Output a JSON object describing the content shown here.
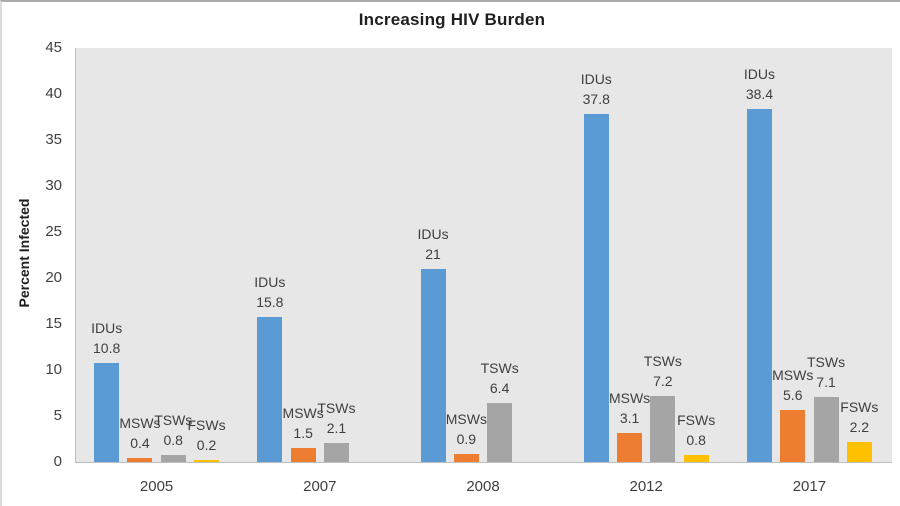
{
  "chart_data": {
    "type": "bar",
    "title": "Increasing HIV Burden",
    "xlabel": "",
    "ylabel": "Percent Infected",
    "categories": [
      "2005",
      "2007",
      "2008",
      "2012",
      "2017"
    ],
    "series": [
      {
        "name": "IDUs",
        "color": "#5B9BD5",
        "values": [
          10.8,
          15.8,
          21,
          37.8,
          38.4
        ]
      },
      {
        "name": "MSWs",
        "color": "#ED7D31",
        "values": [
          0.4,
          1.5,
          0.9,
          3.1,
          5.6
        ]
      },
      {
        "name": "TSWs",
        "color": "#A5A5A5",
        "values": [
          0.8,
          2.1,
          6.4,
          7.2,
          7.1
        ]
      },
      {
        "name": "FSWs",
        "color": "#FFC000",
        "values": [
          0.2,
          null,
          null,
          0.8,
          2.2
        ]
      }
    ],
    "ylim": [
      0,
      45
    ],
    "yticks": [
      0,
      5,
      10,
      15,
      20,
      25,
      30,
      35,
      40,
      45
    ],
    "grid": false,
    "legend": "none",
    "plot_background": "#e7e7e7",
    "data_labels": "series-name-and-value",
    "data_label_color": "#3f3f3f",
    "tick_label_color": "#404040"
  }
}
